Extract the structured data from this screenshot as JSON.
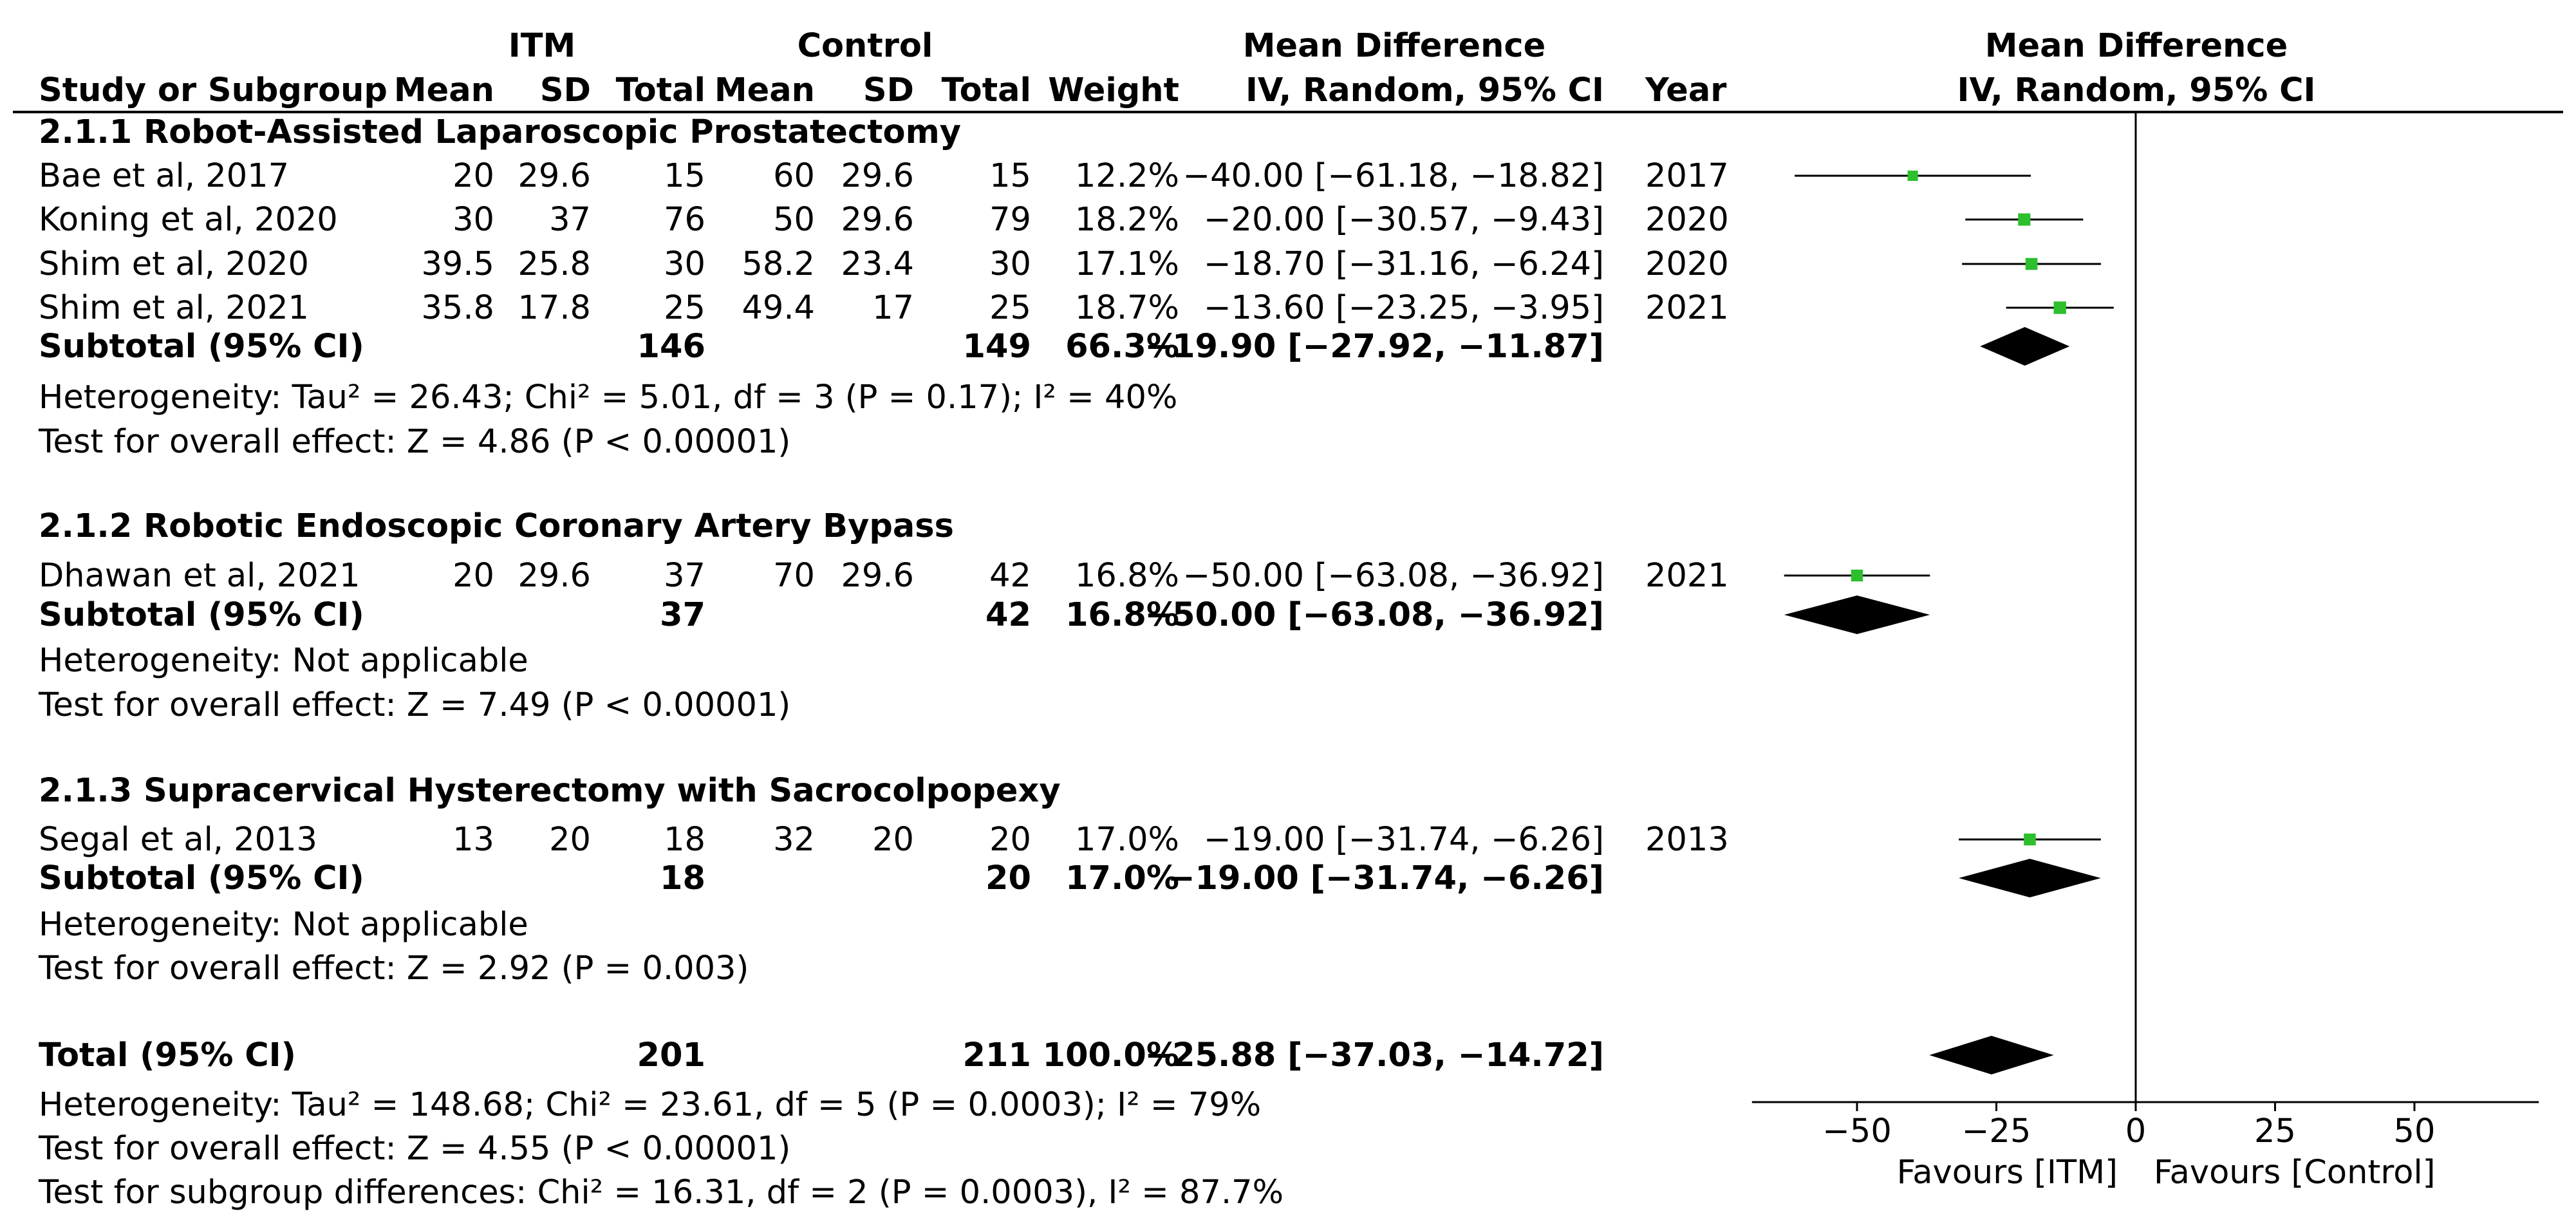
{
  "header": {
    "group1": "ITM",
    "group2": "Control",
    "md_title": "Mean Difference",
    "md_method": "IV, Random, 95% CI",
    "plot_title": "Mean Difference",
    "plot_method": "IV, Random, 95% CI",
    "columns": {
      "study": "Study or Subgroup",
      "mean1": "Mean",
      "sd1": "SD",
      "total1": "Total",
      "mean2": "Mean",
      "sd2": "SD",
      "total2": "Total",
      "weight": "Weight",
      "year": "Year"
    }
  },
  "colors": {
    "square": "#2dbf2d",
    "diamond": "#000000",
    "line": "#000000"
  },
  "subgroups": [
    {
      "title": "2.1.1 Robot-Assisted Laparoscopic Prostatectomy",
      "studies": [
        {
          "name": "Bae et al, 2017",
          "mean1": "20",
          "sd1": "29.6",
          "total1": "15",
          "mean2": "60",
          "sd2": "29.6",
          "total2": "15",
          "weight": "12.2%",
          "ci_text": "−40.00 [−61.18, −18.82]",
          "year": "2017",
          "md": -40.0,
          "lo": -61.18,
          "hi": -18.82
        },
        {
          "name": "Koning et al, 2020",
          "mean1": "30",
          "sd1": "37",
          "total1": "76",
          "mean2": "50",
          "sd2": "29.6",
          "total2": "79",
          "weight": "18.2%",
          "ci_text": "−20.00 [−30.57, −9.43]",
          "year": "2020",
          "md": -20.0,
          "lo": -30.57,
          "hi": -9.43
        },
        {
          "name": "Shim et al, 2020",
          "mean1": "39.5",
          "sd1": "25.8",
          "total1": "30",
          "mean2": "58.2",
          "sd2": "23.4",
          "total2": "30",
          "weight": "17.1%",
          "ci_text": "−18.70 [−31.16, −6.24]",
          "year": "2020",
          "md": -18.7,
          "lo": -31.16,
          "hi": -6.24
        },
        {
          "name": "Shim et al, 2021",
          "mean1": "35.8",
          "sd1": "17.8",
          "total1": "25",
          "mean2": "49.4",
          "sd2": "17",
          "total2": "25",
          "weight": "18.7%",
          "ci_text": "−13.60 [−23.25, −3.95]",
          "year": "2021",
          "md": -13.6,
          "lo": -23.25,
          "hi": -3.95
        }
      ],
      "subtotal": {
        "label": "Subtotal (95% CI)",
        "total1": "146",
        "total2": "149",
        "weight": "66.3%",
        "ci_text": "−19.90 [−27.92, −11.87]",
        "md": -19.9,
        "lo": -27.92,
        "hi": -11.87
      },
      "heterogeneity": "Heterogeneity: Tau² = 26.43; Chi² = 5.01, df = 3 (P = 0.17); I² = 40%",
      "overall": "Test for overall effect: Z = 4.86 (P < 0.00001)"
    },
    {
      "title": "2.1.2 Robotic Endoscopic Coronary Artery Bypass",
      "studies": [
        {
          "name": "Dhawan et al, 2021",
          "mean1": "20",
          "sd1": "29.6",
          "total1": "37",
          "mean2": "70",
          "sd2": "29.6",
          "total2": "42",
          "weight": "16.8%",
          "ci_text": "−50.00 [−63.08, −36.92]",
          "year": "2021",
          "md": -50.0,
          "lo": -63.08,
          "hi": -36.92
        }
      ],
      "subtotal": {
        "label": "Subtotal (95% CI)",
        "total1": "37",
        "total2": "42",
        "weight": "16.8%",
        "ci_text": "−50.00 [−63.08, −36.92]",
        "md": -50.0,
        "lo": -63.08,
        "hi": -36.92
      },
      "heterogeneity": "Heterogeneity: Not applicable",
      "overall": "Test for overall effect: Z = 7.49 (P < 0.00001)"
    },
    {
      "title": "2.1.3 Supracervical Hysterectomy with Sacrocolpopexy",
      "studies": [
        {
          "name": "Segal et al, 2013",
          "mean1": "13",
          "sd1": "20",
          "total1": "18",
          "mean2": "32",
          "sd2": "20",
          "total2": "20",
          "weight": "17.0%",
          "ci_text": "−19.00 [−31.74, −6.26]",
          "year": "2013",
          "md": -19.0,
          "lo": -31.74,
          "hi": -6.26
        }
      ],
      "subtotal": {
        "label": "Subtotal (95% CI)",
        "total1": "18",
        "total2": "20",
        "weight": "17.0%",
        "ci_text": "−19.00 [−31.74, −6.26]",
        "md": -19.0,
        "lo": -31.74,
        "hi": -6.26
      },
      "heterogeneity": "Heterogeneity: Not applicable",
      "overall": "Test for overall effect: Z = 2.92 (P = 0.003)"
    }
  ],
  "total": {
    "label": "Total (95% CI)",
    "total1": "201",
    "total2": "211",
    "weight": "100.0%",
    "ci_text": "−25.88 [−37.03, −14.72]",
    "md": -25.88,
    "lo": -37.03,
    "hi": -14.72,
    "heterogeneity": "Heterogeneity: Tau² = 148.68; Chi² = 23.61, df = 5 (P = 0.0003); I² = 79%",
    "overall": "Test for overall effect: Z = 4.55 (P < 0.00001)",
    "subgroup_diff": "Test for subgroup differences: Chi² = 16.31, df = 2 (P = 0.0003), I² = 87.7%"
  },
  "axis": {
    "ticks": [
      -50,
      -25,
      0,
      25,
      50
    ],
    "tick_labels": [
      "−50",
      "−25",
      "0",
      "25",
      "50"
    ],
    "range": [
      -70,
      70
    ],
    "favours_left": "Favours [ITM]",
    "favours_right": "Favours [Control]"
  },
  "chart_data": {
    "type": "forest",
    "title": "Mean Difference",
    "subtitle": "IV, Random, 95% CI",
    "xlabel": "Favours [ITM]  Favours [Control]",
    "xlim": [
      -70,
      70
    ],
    "x_ticks": [
      -50,
      -25,
      0,
      25,
      50
    ],
    "series": [
      {
        "name": "Bae et al, 2017",
        "kind": "study",
        "md": -40.0,
        "lo": -61.18,
        "hi": -18.82,
        "weight": 12.2
      },
      {
        "name": "Koning et al, 2020",
        "kind": "study",
        "md": -20.0,
        "lo": -30.57,
        "hi": -9.43,
        "weight": 18.2
      },
      {
        "name": "Shim et al, 2020",
        "kind": "study",
        "md": -18.7,
        "lo": -31.16,
        "hi": -6.24,
        "weight": 17.1
      },
      {
        "name": "Shim et al, 2021",
        "kind": "study",
        "md": -13.6,
        "lo": -23.25,
        "hi": -3.95,
        "weight": 18.7
      },
      {
        "name": "Subtotal 2.1.1",
        "kind": "subtotal",
        "md": -19.9,
        "lo": -27.92,
        "hi": -11.87,
        "weight": 66.3
      },
      {
        "name": "Dhawan et al, 2021",
        "kind": "study",
        "md": -50.0,
        "lo": -63.08,
        "hi": -36.92,
        "weight": 16.8
      },
      {
        "name": "Subtotal 2.1.2",
        "kind": "subtotal",
        "md": -50.0,
        "lo": -63.08,
        "hi": -36.92,
        "weight": 16.8
      },
      {
        "name": "Segal et al, 2013",
        "kind": "study",
        "md": -19.0,
        "lo": -31.74,
        "hi": -6.26,
        "weight": 17.0
      },
      {
        "name": "Subtotal 2.1.3",
        "kind": "subtotal",
        "md": -19.0,
        "lo": -31.74,
        "hi": -6.26,
        "weight": 17.0
      },
      {
        "name": "Total (95% CI)",
        "kind": "total",
        "md": -25.88,
        "lo": -37.03,
        "hi": -14.72,
        "weight": 100.0
      }
    ]
  }
}
